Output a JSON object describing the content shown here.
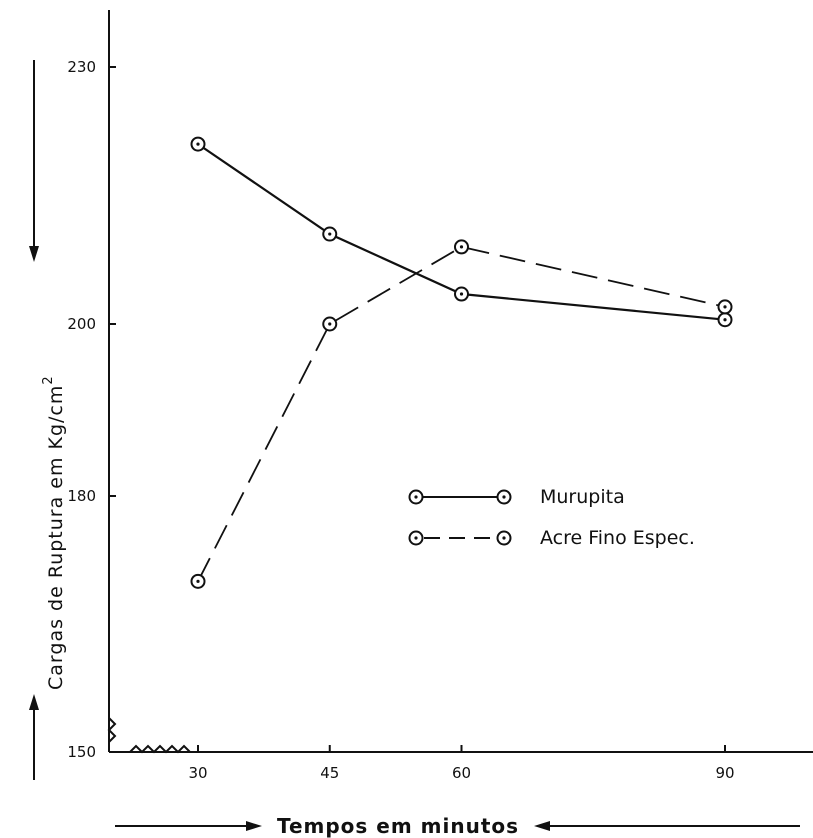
{
  "chart_data": {
    "type": "line",
    "x": [
      30,
      45,
      60,
      90
    ],
    "x_ticks": [
      "30",
      "45",
      "60",
      "90"
    ],
    "y_ticks": [
      "230",
      "200",
      "180",
      "150"
    ],
    "y_tick_values": [
      230,
      200,
      180,
      150
    ],
    "ylim": [
      150,
      230
    ],
    "y_axis_broken": true,
    "xlabel": "Tempos em minutos",
    "ylabel": "Cargas de Ruptura em Kg/cm",
    "ylabel_superscript": "2",
    "legend_position": "center-right",
    "series": [
      {
        "name": "Murupita",
        "style": "solid",
        "values": [
          221,
          210.5,
          203.5,
          200.5
        ]
      },
      {
        "name": "Acre Fino Espec.",
        "style": "dashed",
        "values": [
          170,
          200,
          209,
          202
        ]
      }
    ]
  }
}
